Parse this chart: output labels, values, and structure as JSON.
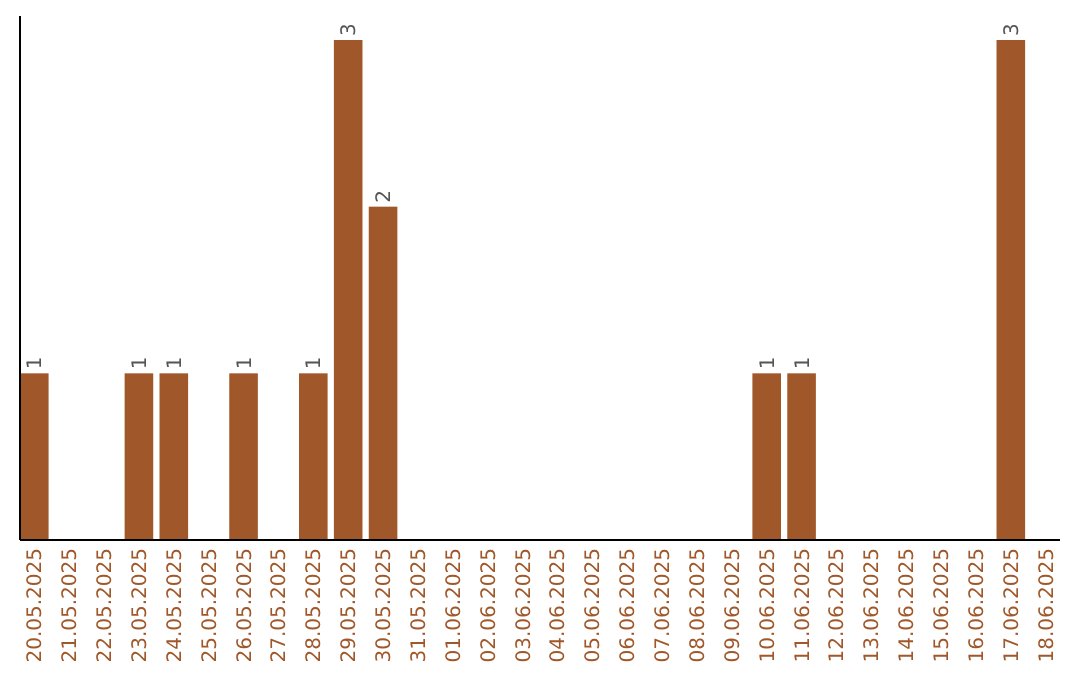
{
  "chart_data": {
    "type": "bar",
    "categories": [
      "20.05.2025",
      "21.05.2025",
      "22.05.2025",
      "23.05.2025",
      "24.05.2025",
      "25.05.2025",
      "26.05.2025",
      "27.05.2025",
      "28.05.2025",
      "29.05.2025",
      "30.05.2025",
      "31.05.2025",
      "01.06.2025",
      "02.06.2025",
      "03.06.2025",
      "04.06.2025",
      "05.06.2025",
      "06.06.2025",
      "07.06.2025",
      "08.06.2025",
      "09.06.2025",
      "10.06.2025",
      "11.06.2025",
      "12.06.2025",
      "13.06.2025",
      "14.06.2025",
      "15.06.2025",
      "16.06.2025",
      "17.06.2025",
      "18.06.2025"
    ],
    "values": [
      1,
      0,
      0,
      1,
      1,
      0,
      1,
      0,
      1,
      3,
      2,
      0,
      0,
      0,
      0,
      0,
      0,
      0,
      0,
      0,
      0,
      1,
      1,
      0,
      0,
      0,
      0,
      0,
      3,
      0
    ],
    "color": "#a0582a",
    "value_labels": [
      "1",
      null,
      null,
      "1",
      "1",
      null,
      "1",
      null,
      "1",
      "3",
      "2",
      null,
      null,
      null,
      null,
      null,
      null,
      null,
      null,
      null,
      null,
      "1",
      "1",
      null,
      null,
      null,
      null,
      null,
      "3",
      null
    ]
  }
}
